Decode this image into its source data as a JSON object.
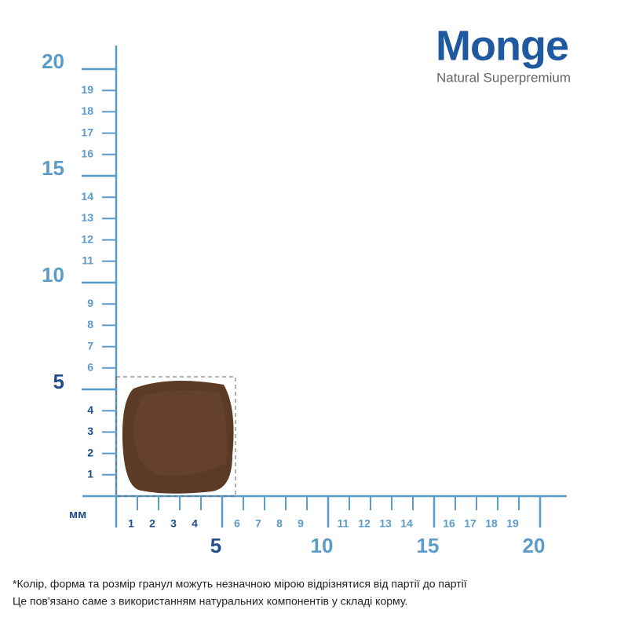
{
  "logo": {
    "brand": "Monge",
    "tagline": "Natural Superpremium"
  },
  "ruler": {
    "unit": "мм",
    "y_minor": [
      1,
      2,
      3,
      4,
      6,
      7,
      8,
      9,
      11,
      12,
      13,
      14,
      16,
      17,
      18,
      19
    ],
    "y_major": [
      5,
      10,
      15,
      20
    ],
    "x_minor": [
      1,
      2,
      3,
      4,
      6,
      7,
      8,
      9,
      11,
      12,
      13,
      14,
      16,
      17,
      18,
      19
    ],
    "x_major": [
      5,
      10,
      15,
      20
    ]
  },
  "footnote": [
    "*Колір, форма та розмір гранул можуть незначною мірою відрізнятися від партії до партії",
    "Це пов'язано саме з використанням натуральних компонентів у складі корму."
  ]
}
